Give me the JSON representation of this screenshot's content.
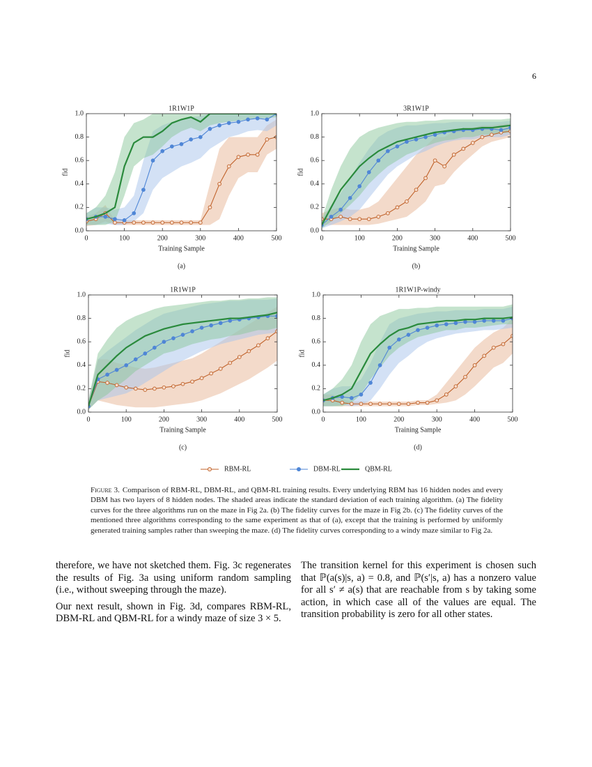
{
  "page_number": "6",
  "legend": [
    {
      "name": "RBM-RL",
      "color": "#c0622a",
      "marker": "open-circle"
    },
    {
      "name": "DBM-RL",
      "color": "#4f86d6",
      "marker": "circle"
    },
    {
      "name": "QBM-RL",
      "color": "#2a8a3c",
      "marker": "none"
    }
  ],
  "chart_data": [
    {
      "type": "line",
      "title": "1R1W1P",
      "xlabel": "Training Sample",
      "ylabel": "fid",
      "panel": "(a)",
      "xlim": [
        0,
        500
      ],
      "ylim": [
        0,
        1
      ],
      "xticks": [
        0,
        100,
        200,
        300,
        400,
        500
      ],
      "yticks": [
        {
          "value": 0,
          "label": "0.0"
        },
        0.2,
        0.4,
        0.6,
        0.8,
        {
          "value": 1,
          "label": "1.0"
        }
      ],
      "x": [
        0,
        25,
        50,
        75,
        100,
        125,
        150,
        175,
        200,
        225,
        250,
        275,
        300,
        325,
        350,
        375,
        400,
        425,
        450,
        475,
        500
      ],
      "series": [
        {
          "values": [
            0.08,
            0.1,
            0.15,
            0.07,
            0.07,
            0.07,
            0.07,
            0.07,
            0.07,
            0.07,
            0.07,
            0.07,
            0.07,
            0.2,
            0.4,
            0.55,
            0.63,
            0.65,
            0.65,
            0.78,
            0.8
          ],
          "lower": [
            0.04,
            0.05,
            0.08,
            0.05,
            0.05,
            0.05,
            0.05,
            0.05,
            0.05,
            0.05,
            0.05,
            0.05,
            0.05,
            0.05,
            0.1,
            0.3,
            0.45,
            0.5,
            0.5,
            0.65,
            0.7
          ],
          "upper": [
            0.12,
            0.15,
            0.22,
            0.09,
            0.09,
            0.09,
            0.09,
            0.09,
            0.09,
            0.09,
            0.09,
            0.09,
            0.09,
            0.4,
            0.7,
            0.8,
            0.8,
            0.8,
            0.8,
            0.9,
            0.95
          ]
        },
        {
          "values": [
            0.1,
            0.12,
            0.12,
            0.1,
            0.09,
            0.15,
            0.35,
            0.6,
            0.68,
            0.72,
            0.74,
            0.78,
            0.8,
            0.87,
            0.9,
            0.92,
            0.93,
            0.95,
            0.96,
            0.95,
            1.0
          ],
          "lower": [
            0.05,
            0.05,
            0.06,
            0.05,
            0.05,
            0.08,
            0.15,
            0.35,
            0.45,
            0.5,
            0.55,
            0.58,
            0.62,
            0.7,
            0.75,
            0.8,
            0.82,
            0.85,
            0.86,
            0.85,
            0.9
          ],
          "upper": [
            0.15,
            0.2,
            0.2,
            0.18,
            0.2,
            0.3,
            0.6,
            0.85,
            0.9,
            0.93,
            0.95,
            0.97,
            0.98,
            1.0,
            1.0,
            1.0,
            1.0,
            1.0,
            1.0,
            1.0,
            1.0
          ]
        },
        {
          "values": [
            0.1,
            0.12,
            0.15,
            0.2,
            0.55,
            0.75,
            0.8,
            0.8,
            0.85,
            0.92,
            0.95,
            0.97,
            0.93,
            1.0,
            1.0,
            1.0,
            1.0,
            1.0,
            1.0,
            1.0,
            1.0
          ],
          "lower": [
            0.05,
            0.05,
            0.05,
            0.08,
            0.3,
            0.55,
            0.62,
            0.65,
            0.72,
            0.8,
            0.85,
            0.88,
            0.85,
            0.9,
            0.92,
            0.93,
            0.94,
            0.95,
            0.96,
            0.96,
            0.97
          ],
          "upper": [
            0.15,
            0.2,
            0.3,
            0.5,
            0.8,
            0.92,
            0.95,
            1.0,
            1.0,
            1.0,
            1.0,
            1.0,
            1.0,
            1.0,
            1.0,
            1.0,
            1.0,
            1.0,
            1.0,
            1.0,
            1.0
          ]
        }
      ]
    },
    {
      "type": "line",
      "title": "3R1W1P",
      "xlabel": "Training Sample",
      "ylabel": "fid",
      "panel": "(b)",
      "xlim": [
        0,
        500
      ],
      "ylim": [
        0,
        1
      ],
      "xticks": [
        0,
        100,
        200,
        300,
        400,
        500
      ],
      "yticks": [
        {
          "value": 0,
          "label": "0.0"
        },
        0.2,
        0.4,
        0.6,
        0.8,
        {
          "value": 1,
          "label": "1.0"
        }
      ],
      "x": [
        0,
        25,
        50,
        75,
        100,
        125,
        150,
        175,
        200,
        225,
        250,
        275,
        300,
        325,
        350,
        375,
        400,
        425,
        450,
        475,
        500
      ],
      "series": [
        {
          "values": [
            0.1,
            0.1,
            0.12,
            0.1,
            0.1,
            0.1,
            0.12,
            0.15,
            0.2,
            0.25,
            0.35,
            0.45,
            0.6,
            0.55,
            0.65,
            0.7,
            0.75,
            0.8,
            0.82,
            0.84,
            0.85
          ],
          "lower": [
            0.05,
            0.05,
            0.05,
            0.05,
            0.05,
            0.05,
            0.06,
            0.08,
            0.1,
            0.12,
            0.18,
            0.25,
            0.38,
            0.4,
            0.5,
            0.58,
            0.65,
            0.72,
            0.76,
            0.78,
            0.8
          ],
          "upper": [
            0.15,
            0.18,
            0.2,
            0.18,
            0.18,
            0.2,
            0.25,
            0.35,
            0.45,
            0.55,
            0.65,
            0.72,
            0.8,
            0.8,
            0.85,
            0.87,
            0.88,
            0.9,
            0.9,
            0.91,
            0.92
          ]
        },
        {
          "values": [
            0.05,
            0.12,
            0.18,
            0.28,
            0.38,
            0.5,
            0.6,
            0.68,
            0.72,
            0.76,
            0.78,
            0.8,
            0.82,
            0.84,
            0.85,
            0.86,
            0.86,
            0.87,
            0.87,
            0.86,
            0.88
          ],
          "lower": [
            0.02,
            0.05,
            0.08,
            0.12,
            0.18,
            0.28,
            0.38,
            0.48,
            0.55,
            0.6,
            0.65,
            0.68,
            0.72,
            0.75,
            0.77,
            0.78,
            0.78,
            0.8,
            0.8,
            0.8,
            0.82
          ],
          "upper": [
            0.1,
            0.22,
            0.32,
            0.45,
            0.58,
            0.7,
            0.8,
            0.85,
            0.88,
            0.9,
            0.9,
            0.91,
            0.92,
            0.92,
            0.93,
            0.93,
            0.93,
            0.93,
            0.93,
            0.93,
            0.94
          ]
        },
        {
          "values": [
            0.05,
            0.2,
            0.35,
            0.45,
            0.55,
            0.62,
            0.68,
            0.72,
            0.76,
            0.78,
            0.8,
            0.82,
            0.84,
            0.85,
            0.86,
            0.87,
            0.87,
            0.88,
            0.88,
            0.89,
            0.9
          ],
          "lower": [
            0.02,
            0.08,
            0.15,
            0.22,
            0.3,
            0.4,
            0.48,
            0.55,
            0.6,
            0.65,
            0.68,
            0.72,
            0.75,
            0.77,
            0.78,
            0.8,
            0.8,
            0.82,
            0.82,
            0.83,
            0.84
          ],
          "upper": [
            0.1,
            0.35,
            0.55,
            0.7,
            0.8,
            0.85,
            0.88,
            0.9,
            0.92,
            0.93,
            0.93,
            0.94,
            0.94,
            0.95,
            0.95,
            0.95,
            0.95,
            0.95,
            0.95,
            0.95,
            0.96
          ]
        }
      ]
    },
    {
      "type": "line",
      "title": "1R1W1P",
      "xlabel": "Training Sample",
      "ylabel": "fid",
      "panel": "(c)",
      "xlim": [
        0,
        500
      ],
      "ylim": [
        0,
        1
      ],
      "xticks": [
        0,
        100,
        200,
        300,
        400,
        500
      ],
      "yticks": [
        {
          "value": 0,
          "label": "0.0"
        },
        0.2,
        0.4,
        0.6,
        0.8,
        {
          "value": 1,
          "label": "1.0"
        }
      ],
      "x": [
        0,
        25,
        50,
        75,
        100,
        125,
        150,
        175,
        200,
        225,
        250,
        275,
        300,
        325,
        350,
        375,
        400,
        425,
        450,
        475,
        500
      ],
      "series": [
        {
          "values": [
            0.05,
            0.26,
            0.25,
            0.23,
            0.21,
            0.2,
            0.19,
            0.2,
            0.21,
            0.22,
            0.24,
            0.26,
            0.29,
            0.33,
            0.37,
            0.42,
            0.47,
            0.52,
            0.57,
            0.63,
            0.69
          ],
          "lower": [
            0.02,
            0.1,
            0.08,
            0.06,
            0.05,
            0.04,
            0.04,
            0.04,
            0.05,
            0.06,
            0.07,
            0.08,
            0.1,
            0.13,
            0.16,
            0.2,
            0.24,
            0.28,
            0.33,
            0.38,
            0.44
          ],
          "upper": [
            0.1,
            0.45,
            0.45,
            0.42,
            0.4,
            0.38,
            0.37,
            0.38,
            0.4,
            0.42,
            0.44,
            0.46,
            0.5,
            0.55,
            0.6,
            0.65,
            0.7,
            0.75,
            0.8,
            0.85,
            0.9
          ]
        },
        {
          "values": [
            0.05,
            0.28,
            0.32,
            0.36,
            0.4,
            0.45,
            0.5,
            0.55,
            0.6,
            0.63,
            0.66,
            0.69,
            0.72,
            0.74,
            0.76,
            0.78,
            0.79,
            0.8,
            0.81,
            0.82,
            0.82
          ],
          "lower": [
            0.02,
            0.1,
            0.12,
            0.14,
            0.16,
            0.2,
            0.25,
            0.3,
            0.35,
            0.4,
            0.44,
            0.48,
            0.52,
            0.55,
            0.58,
            0.6,
            0.62,
            0.64,
            0.66,
            0.67,
            0.68
          ],
          "upper": [
            0.1,
            0.45,
            0.52,
            0.58,
            0.64,
            0.7,
            0.75,
            0.8,
            0.84,
            0.86,
            0.88,
            0.9,
            0.92,
            0.93,
            0.94,
            0.95,
            0.95,
            0.96,
            0.96,
            0.96,
            0.97
          ]
        },
        {
          "values": [
            0.05,
            0.32,
            0.4,
            0.48,
            0.55,
            0.6,
            0.65,
            0.68,
            0.71,
            0.73,
            0.75,
            0.76,
            0.77,
            0.78,
            0.79,
            0.8,
            0.8,
            0.81,
            0.82,
            0.83,
            0.85
          ],
          "lower": [
            0.02,
            0.1,
            0.15,
            0.22,
            0.28,
            0.35,
            0.4,
            0.45,
            0.5,
            0.52,
            0.55,
            0.58,
            0.6,
            0.62,
            0.63,
            0.65,
            0.66,
            0.68,
            0.7,
            0.7,
            0.72
          ],
          "upper": [
            0.1,
            0.5,
            0.62,
            0.72,
            0.78,
            0.82,
            0.85,
            0.88,
            0.9,
            0.91,
            0.92,
            0.93,
            0.94,
            0.95,
            0.95,
            0.96,
            0.96,
            0.97,
            0.97,
            0.98,
            0.98
          ]
        }
      ]
    },
    {
      "type": "line",
      "title": "1R1W1P-windy",
      "xlabel": "Training Sample",
      "ylabel": "fid",
      "panel": "(d)",
      "xlim": [
        0,
        500
      ],
      "ylim": [
        0,
        1
      ],
      "xticks": [
        0,
        100,
        200,
        300,
        400,
        500
      ],
      "yticks": [
        {
          "value": 0,
          "label": "0.0"
        },
        0.2,
        0.4,
        0.6,
        0.8,
        {
          "value": 1,
          "label": "1.0"
        }
      ],
      "x": [
        0,
        25,
        50,
        75,
        100,
        125,
        150,
        175,
        200,
        225,
        250,
        275,
        300,
        325,
        350,
        375,
        400,
        425,
        450,
        475,
        500
      ],
      "series": [
        {
          "values": [
            0.1,
            0.1,
            0.08,
            0.07,
            0.07,
            0.07,
            0.07,
            0.07,
            0.07,
            0.07,
            0.08,
            0.08,
            0.1,
            0.15,
            0.22,
            0.3,
            0.4,
            0.48,
            0.55,
            0.58,
            0.65
          ],
          "lower": [
            0.05,
            0.05,
            0.05,
            0.05,
            0.05,
            0.05,
            0.05,
            0.05,
            0.05,
            0.05,
            0.06,
            0.06,
            0.07,
            0.08,
            0.1,
            0.15,
            0.22,
            0.3,
            0.38,
            0.42,
            0.5
          ],
          "upper": [
            0.15,
            0.15,
            0.11,
            0.09,
            0.09,
            0.09,
            0.09,
            0.09,
            0.09,
            0.09,
            0.1,
            0.1,
            0.15,
            0.25,
            0.35,
            0.45,
            0.55,
            0.62,
            0.68,
            0.72,
            0.8
          ]
        },
        {
          "values": [
            0.1,
            0.12,
            0.13,
            0.12,
            0.15,
            0.25,
            0.4,
            0.55,
            0.62,
            0.66,
            0.7,
            0.72,
            0.74,
            0.75,
            0.76,
            0.77,
            0.77,
            0.78,
            0.78,
            0.78,
            0.8
          ],
          "lower": [
            0.05,
            0.05,
            0.06,
            0.05,
            0.06,
            0.1,
            0.2,
            0.32,
            0.42,
            0.48,
            0.55,
            0.6,
            0.63,
            0.65,
            0.67,
            0.68,
            0.69,
            0.7,
            0.7,
            0.71,
            0.72
          ],
          "upper": [
            0.15,
            0.2,
            0.22,
            0.22,
            0.28,
            0.42,
            0.6,
            0.75,
            0.8,
            0.82,
            0.84,
            0.85,
            0.86,
            0.86,
            0.87,
            0.87,
            0.87,
            0.88,
            0.88,
            0.88,
            0.9
          ]
        },
        {
          "values": [
            0.1,
            0.12,
            0.15,
            0.2,
            0.35,
            0.5,
            0.58,
            0.65,
            0.7,
            0.72,
            0.75,
            0.76,
            0.77,
            0.78,
            0.78,
            0.79,
            0.79,
            0.8,
            0.8,
            0.8,
            0.81
          ],
          "lower": [
            0.05,
            0.05,
            0.05,
            0.08,
            0.15,
            0.28,
            0.38,
            0.48,
            0.55,
            0.6,
            0.64,
            0.66,
            0.68,
            0.7,
            0.7,
            0.72,
            0.72,
            0.73,
            0.74,
            0.75,
            0.75
          ],
          "upper": [
            0.15,
            0.2,
            0.28,
            0.4,
            0.6,
            0.75,
            0.82,
            0.85,
            0.88,
            0.88,
            0.89,
            0.89,
            0.9,
            0.9,
            0.9,
            0.9,
            0.9,
            0.9,
            0.9,
            0.9,
            0.92
          ]
        }
      ]
    }
  ],
  "caption": {
    "label": "Figure 3.",
    "text": "Comparison of RBM-RL, DBM-RL, and QBM-RL training results. Every underlying RBM has 16 hidden nodes and every DBM has two layers of 8 hidden nodes. The shaded areas indicate the standard deviation of each training algorithm. (a) The fidelity curves for the three algorithms run on the maze in Fig 2a. (b) The fidelity curves for the maze in Fig 2b. (c) The fidelity curves of the mentioned three algorithms corresponding to the same experiment as that of (a), except that the training is performed by uniformly generated training samples rather than sweeping the maze. (d) The fidelity curves corresponding to a windy maze similar to Fig 2a."
  },
  "columns": [
    [
      "therefore, we have not sketched them. Fig. 3c regenerates the results of Fig. 3a using uniform random sampling (i.e., without sweeping through the maze).",
      "Our next result, shown in Fig. 3d, compares RBM-RL, DBM-RL and QBM-RL for a windy maze of size 3 × 5."
    ],
    [
      "The transition kernel for this experiment is chosen such that ℙ(a(s)|s, a) = 0.8, and ℙ(s′|s, a) has a nonzero value for all s′ ≠ a(s) that are reachable from s by taking some action, in which case all of the values are equal. The transition probability is zero for all other states."
    ]
  ]
}
